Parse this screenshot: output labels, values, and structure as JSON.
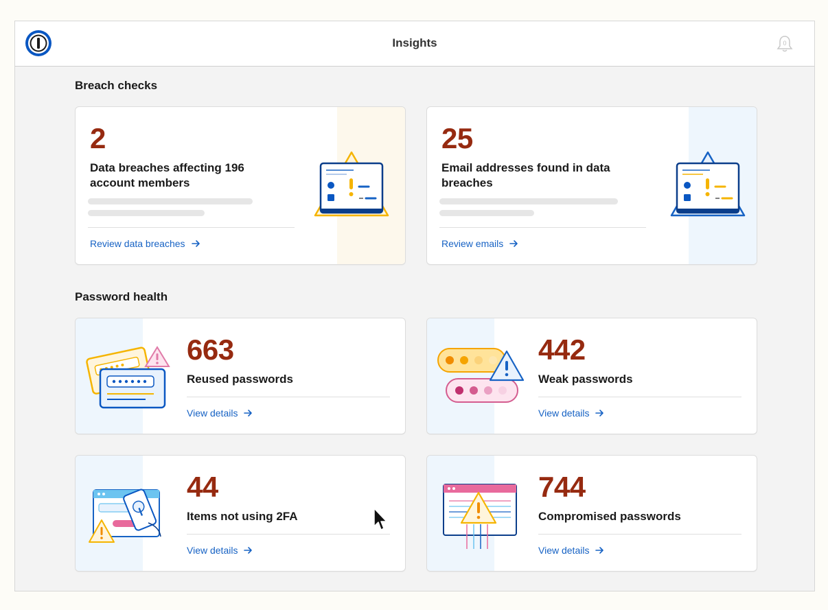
{
  "header": {
    "title": "Insights",
    "notification_count": "0"
  },
  "breach_checks": {
    "title": "Breach checks",
    "cards": [
      {
        "value": "2",
        "label_line1": "Data breaches affecting 196",
        "label_line2": "account members",
        "link": "Review data breaches"
      },
      {
        "value": "25",
        "label_line1": "Email addresses found in data",
        "label_line2": "breaches",
        "link": "Review emails"
      }
    ]
  },
  "password_health": {
    "title": "Password health",
    "cards": [
      {
        "value": "663",
        "label": "Reused passwords",
        "link": "View details"
      },
      {
        "value": "442",
        "label": "Weak passwords",
        "link": "View details"
      },
      {
        "value": "44",
        "label": "Items not using 2FA",
        "link": "View details"
      },
      {
        "value": "744",
        "label": "Compromised passwords",
        "link": "View details"
      }
    ]
  },
  "colors": {
    "accent_number": "#962a10",
    "link": "#1662c4",
    "warning_yellow": "#f5b400",
    "brand_blue": "#0a57c2",
    "pale_blue_panel": "#eef6fd",
    "pale_yellow_panel": "#fdf8ec"
  }
}
